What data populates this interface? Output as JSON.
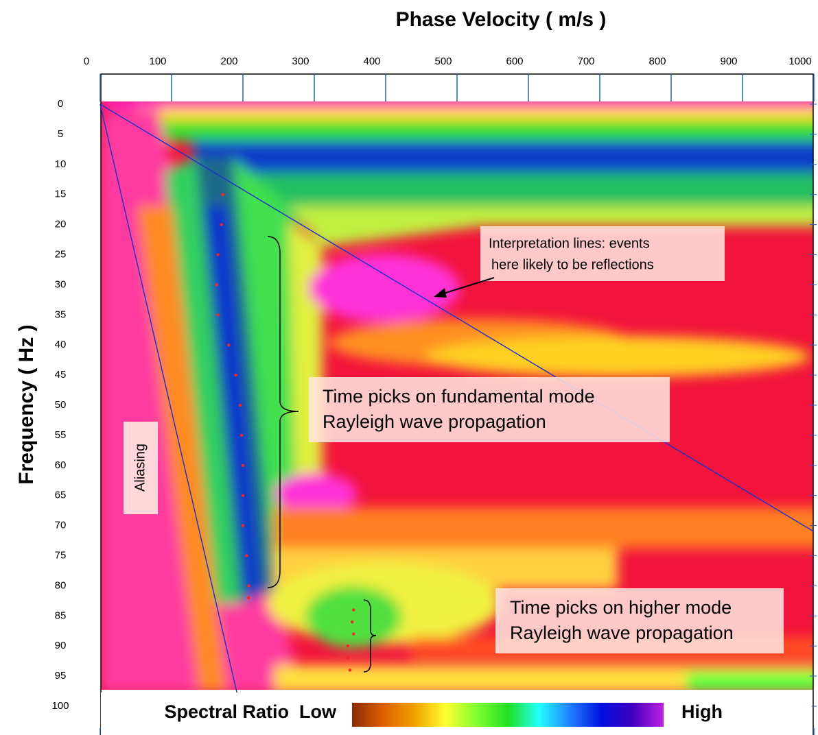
{
  "chart_data": {
    "type": "dispersion",
    "x_label": "Phase Velocity ( m/s )",
    "y_label": "Frequency ( Hz )",
    "xlim": [
      0,
      1000
    ],
    "xticks": [
      0,
      100,
      200,
      300,
      400,
      500,
      600,
      700,
      800,
      900,
      1000
    ],
    "ylim": [
      0,
      100
    ],
    "yticks": [
      0,
      5,
      10,
      15,
      20,
      25,
      30,
      35,
      40,
      45,
      50,
      55,
      60,
      65,
      70,
      75,
      80,
      85,
      90,
      95,
      100
    ],
    "y_reversed": true,
    "grid": false,
    "lines": [
      {
        "color": "#2233cc",
        "x": [
          0,
          1000
        ],
        "y": [
          0,
          71
        ]
      },
      {
        "color": "#2233cc",
        "x": [
          0,
          196
        ],
        "y": [
          0,
          100
        ]
      }
    ],
    "picks": [
      {
        "color": "#ff2020",
        "x": [
          172,
          170,
          165,
          163,
          165,
          180,
          190,
          196,
          198,
          200,
          200,
          200,
          205,
          208,
          208
        ],
        "y": [
          15,
          20,
          25,
          30,
          35,
          40,
          45,
          50,
          55,
          60,
          65,
          70,
          75,
          80,
          82
        ]
      },
      {
        "color": "#ff2020",
        "x": [
          355,
          353,
          355,
          347,
          347,
          350
        ],
        "y": [
          84,
          86,
          88,
          90,
          92,
          94
        ]
      }
    ],
    "annotations": {
      "reflections": [
        "Interpretation lines: events",
        "here likely to be reflections"
      ],
      "fundamental": [
        "Time picks on fundamental mode",
        "Rayleigh wave propagation"
      ],
      "higher": [
        "Time picks on higher mode",
        "Rayleigh wave propagation"
      ],
      "aliasing": "Aliasing"
    },
    "colorbar": {
      "low_label": "Spectral Ratio  Low",
      "high_label": "High",
      "colors": [
        "#8b2a00",
        "#e06000",
        "#f0a000",
        "#ffff30",
        "#80ff30",
        "#20e020",
        "#20ffff",
        "#2080ff",
        "#0010e0",
        "#4000c0",
        "#c020e0"
      ]
    }
  }
}
